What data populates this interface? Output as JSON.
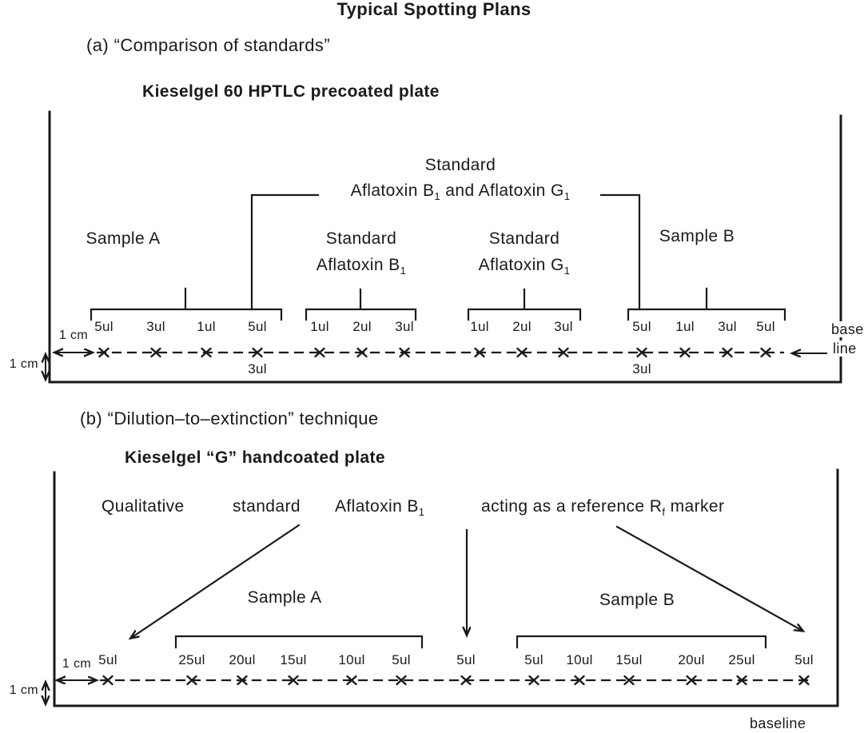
{
  "title": "Typical Spotting Plans",
  "section_a": {
    "heading": "(a) “Comparison of standards”",
    "plate_title": "Kieselgel 60 HPTLC precoated plate",
    "standard_callout": {
      "line1": "Standard",
      "line2_p1": "Aflatoxin B",
      "line2_s1": "1",
      "line2_p2": " and Aflatoxin G",
      "line2_s2": "1"
    },
    "groups": [
      {
        "label1": "Sample A",
        "volumes": [
          "5ul",
          "3ul",
          "1ul",
          "5ul"
        ]
      },
      {
        "label1": "Standard",
        "label2p": "Aflatoxin B",
        "label2s": "1",
        "volumes": [
          "1ul",
          "2ul",
          "3ul"
        ]
      },
      {
        "label1": "Standard",
        "label2p": "Aflatoxin G",
        "label2s": "1",
        "volumes": [
          "1ul",
          "2ul",
          "3ul"
        ]
      },
      {
        "label1": "Sample B",
        "volumes": [
          "5ul",
          "1ul",
          "3ul",
          "5ul"
        ]
      }
    ],
    "overspot_labels": [
      "3ul",
      "3ul"
    ],
    "h_margin_label": "1 cm",
    "v_margin_label": "1 cm",
    "baseline_label_lines": [
      "base",
      "line"
    ]
  },
  "section_b": {
    "heading": "(b) “Dilution–to–extinction” technique",
    "plate_title": "Kieselgel “G” handcoated plate",
    "annotation": {
      "word1": "Qualitative",
      "word2": "standard",
      "word3p": "Aflatoxin B",
      "word3s": "1",
      "word4a": "acting as a reference R",
      "word4s": "f",
      "word4b": " marker"
    },
    "qualitative_spot_label": "5ul",
    "groups": [
      {
        "label": "Sample A",
        "volumes": [
          "25ul",
          "20ul",
          "15ul",
          "10ul",
          "5ul"
        ]
      },
      {
        "label": "Sample B",
        "volumes": [
          "5ul",
          "10ul",
          "15ul",
          "20ul",
          "25ul"
        ]
      }
    ],
    "center_spot_label": "5ul",
    "reference_spot_label": "5ul",
    "h_margin_label": "1 cm",
    "v_margin_label": "1 cm",
    "baseline_label": "baseline"
  },
  "colors": {
    "ink": "#1a1a1a",
    "paper": "#ffffff"
  }
}
